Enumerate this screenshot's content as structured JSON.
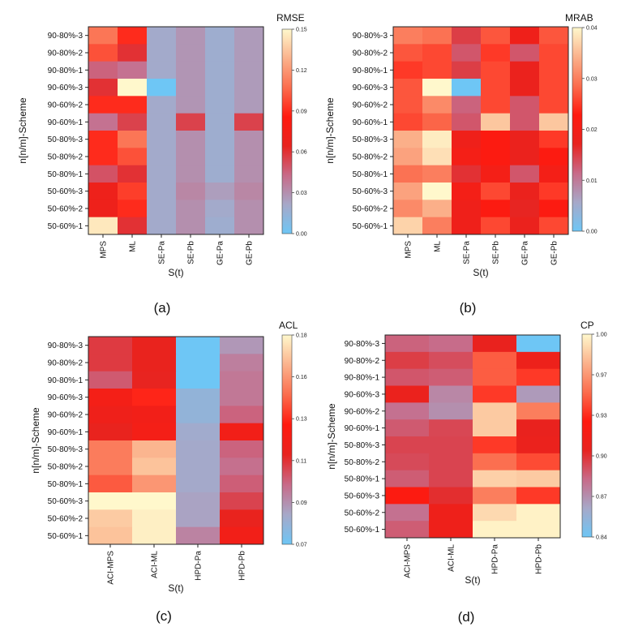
{
  "figure": {
    "colormap": [
      "#6ec6f5",
      "#a7a8c8",
      "#c86a88",
      "#e8231f",
      "#ff1a0f",
      "#fb6d4e",
      "#fbb28c",
      "#fff8cc"
    ],
    "panel_labels": [
      "(a)",
      "(b)",
      "(c)",
      "(d)"
    ]
  },
  "chart_data": [
    {
      "type": "heatmap",
      "panel": "(a)",
      "title": "RMSE",
      "xlabel": "S(t)",
      "ylabel": "n[n/m]-Scheme",
      "x_categories": [
        "MPS",
        "ML",
        "SE-Pa",
        "SE-Pb",
        "GE-Pa",
        "GE-Pb"
      ],
      "y_categories": [
        "90-80%-3",
        "90-80%-2",
        "90-80%-1",
        "90-60%-3",
        "90-60%-2",
        "90-60%-1",
        "50-80%-3",
        "50-80%-2",
        "50-80%-1",
        "50-60%-3",
        "50-60%-2",
        "50-60%-1"
      ],
      "values": [
        [
          0.11,
          0.09,
          0.02,
          0.028,
          0.018,
          0.026
        ],
        [
          0.1,
          0.06,
          0.02,
          0.028,
          0.018,
          0.026
        ],
        [
          0.045,
          0.04,
          0.02,
          0.028,
          0.018,
          0.026
        ],
        [
          0.06,
          0.15,
          0.0,
          0.028,
          0.018,
          0.026
        ],
        [
          0.09,
          0.09,
          0.02,
          0.028,
          0.018,
          0.026
        ],
        [
          0.04,
          0.055,
          0.02,
          0.055,
          0.018,
          0.055
        ],
        [
          0.09,
          0.11,
          0.02,
          0.03,
          0.018,
          0.03
        ],
        [
          0.09,
          0.1,
          0.02,
          0.03,
          0.018,
          0.03
        ],
        [
          0.05,
          0.06,
          0.02,
          0.03,
          0.018,
          0.03
        ],
        [
          0.07,
          0.095,
          0.02,
          0.033,
          0.025,
          0.033
        ],
        [
          0.07,
          0.09,
          0.02,
          0.03,
          0.02,
          0.03
        ],
        [
          0.145,
          0.06,
          0.02,
          0.03,
          0.018,
          0.03
        ]
      ],
      "colorbar_range": [
        0.0,
        0.15
      ],
      "colorbar_ticks": [
        "0.00",
        "0.03",
        "0.06",
        "0.09",
        "0.12",
        "0.15"
      ]
    },
    {
      "type": "heatmap",
      "panel": "(b)",
      "title": "MRAB",
      "xlabel": "S(t)",
      "ylabel": "n[n/m]-Scheme",
      "x_categories": [
        "MPS",
        "ML",
        "SE-Pa",
        "SE-Pb",
        "GE-Pa",
        "GE-Pb"
      ],
      "y_categories": [
        "90-80%-3",
        "90-80%-2",
        "90-80%-1",
        "90-60%-3",
        "90-60%-2",
        "90-60%-1",
        "50-80%-3",
        "50-80%-2",
        "50-80%-1",
        "50-60%-3",
        "50-60%-2",
        "50-60%-1"
      ],
      "values": [
        [
          0.03,
          0.029,
          0.015,
          0.027,
          0.019,
          0.027
        ],
        [
          0.027,
          0.026,
          0.013,
          0.025,
          0.013,
          0.026
        ],
        [
          0.025,
          0.026,
          0.015,
          0.026,
          0.018,
          0.026
        ],
        [
          0.027,
          0.04,
          0.0,
          0.026,
          0.018,
          0.026
        ],
        [
          0.027,
          0.031,
          0.012,
          0.026,
          0.013,
          0.026
        ],
        [
          0.026,
          0.028,
          0.013,
          0.036,
          0.013,
          0.036
        ],
        [
          0.034,
          0.039,
          0.019,
          0.022,
          0.018,
          0.025
        ],
        [
          0.033,
          0.038,
          0.02,
          0.022,
          0.018,
          0.022
        ],
        [
          0.029,
          0.03,
          0.016,
          0.02,
          0.013,
          0.02
        ],
        [
          0.033,
          0.04,
          0.02,
          0.026,
          0.018,
          0.025
        ],
        [
          0.031,
          0.034,
          0.019,
          0.022,
          0.017,
          0.022
        ],
        [
          0.037,
          0.03,
          0.019,
          0.026,
          0.018,
          0.026
        ]
      ],
      "colorbar_range": [
        0.0,
        0.04
      ],
      "colorbar_ticks": [
        "0.00",
        "0.01",
        "0.02",
        "0.03",
        "0.04"
      ]
    },
    {
      "type": "heatmap",
      "panel": "(c)",
      "title": "ACL",
      "xlabel": "S(t)",
      "ylabel": "n[n/m]-Scheme",
      "x_categories": [
        "ACI-MPS",
        "ACI-ML",
        "HPD-Pa",
        "HPD-Pb"
      ],
      "y_categories": [
        "90-80%-3",
        "90-80%-2",
        "90-80%-1",
        "90-60%-3",
        "90-60%-2",
        "90-60%-1",
        "50-80%-3",
        "50-80%-2",
        "50-80%-1",
        "50-60%-3",
        "50-60%-2",
        "50-60%-1"
      ],
      "values": [
        [
          0.112,
          0.118,
          0.07,
          0.09
        ],
        [
          0.112,
          0.118,
          0.07,
          0.096
        ],
        [
          0.105,
          0.117,
          0.07,
          0.098
        ],
        [
          0.125,
          0.135,
          0.08,
          0.098
        ],
        [
          0.122,
          0.124,
          0.08,
          0.103
        ],
        [
          0.118,
          0.125,
          0.084,
          0.124
        ],
        [
          0.152,
          0.165,
          0.085,
          0.103
        ],
        [
          0.152,
          0.168,
          0.085,
          0.1
        ],
        [
          0.145,
          0.158,
          0.085,
          0.104
        ],
        [
          0.18,
          0.18,
          0.087,
          0.11
        ],
        [
          0.17,
          0.178,
          0.087,
          0.118
        ],
        [
          0.168,
          0.178,
          0.095,
          0.124
        ]
      ],
      "colorbar_range": [
        0.07,
        0.18
      ],
      "colorbar_ticks": [
        "0.07",
        "0.09",
        "0.11",
        "0.13",
        "0.16",
        "0.18"
      ]
    },
    {
      "type": "heatmap",
      "panel": "(d)",
      "title": "CP",
      "xlabel": "S(t)",
      "ylabel": "n[n/m]-Scheme",
      "x_categories": [
        "ACI-MPS",
        "ACI-ML",
        "HPD-Pa",
        "HPD-Pb"
      ],
      "y_categories": [
        "90-80%-3",
        "90-80%-2",
        "90-80%-1",
        "90-60%-3",
        "90-60%-2",
        "90-60%-1",
        "50-80%-3",
        "50-80%-2",
        "50-80%-1",
        "50-60%-3",
        "50-60%-2",
        "50-60%-1"
      ],
      "values": [
        [
          0.888,
          0.885,
          0.91,
          0.84
        ],
        [
          0.9,
          0.895,
          0.95,
          0.914
        ],
        [
          0.892,
          0.89,
          0.95,
          0.94
        ],
        [
          0.912,
          0.875,
          0.94,
          0.868
        ],
        [
          0.883,
          0.872,
          0.985,
          0.96
        ],
        [
          0.891,
          0.897,
          0.985,
          0.91
        ],
        [
          0.898,
          0.898,
          0.94,
          0.912
        ],
        [
          0.896,
          0.898,
          0.955,
          0.945
        ],
        [
          0.89,
          0.898,
          0.987,
          0.985
        ],
        [
          0.928,
          0.905,
          0.96,
          0.94
        ],
        [
          0.883,
          0.915,
          0.99,
          0.998
        ],
        [
          0.89,
          0.915,
          0.998,
          0.998
        ]
      ],
      "colorbar_range": [
        0.84,
        1.0
      ],
      "colorbar_ticks": [
        "0.84",
        "0.87",
        "0.90",
        "0.93",
        "0.97",
        "1.00"
      ]
    }
  ]
}
